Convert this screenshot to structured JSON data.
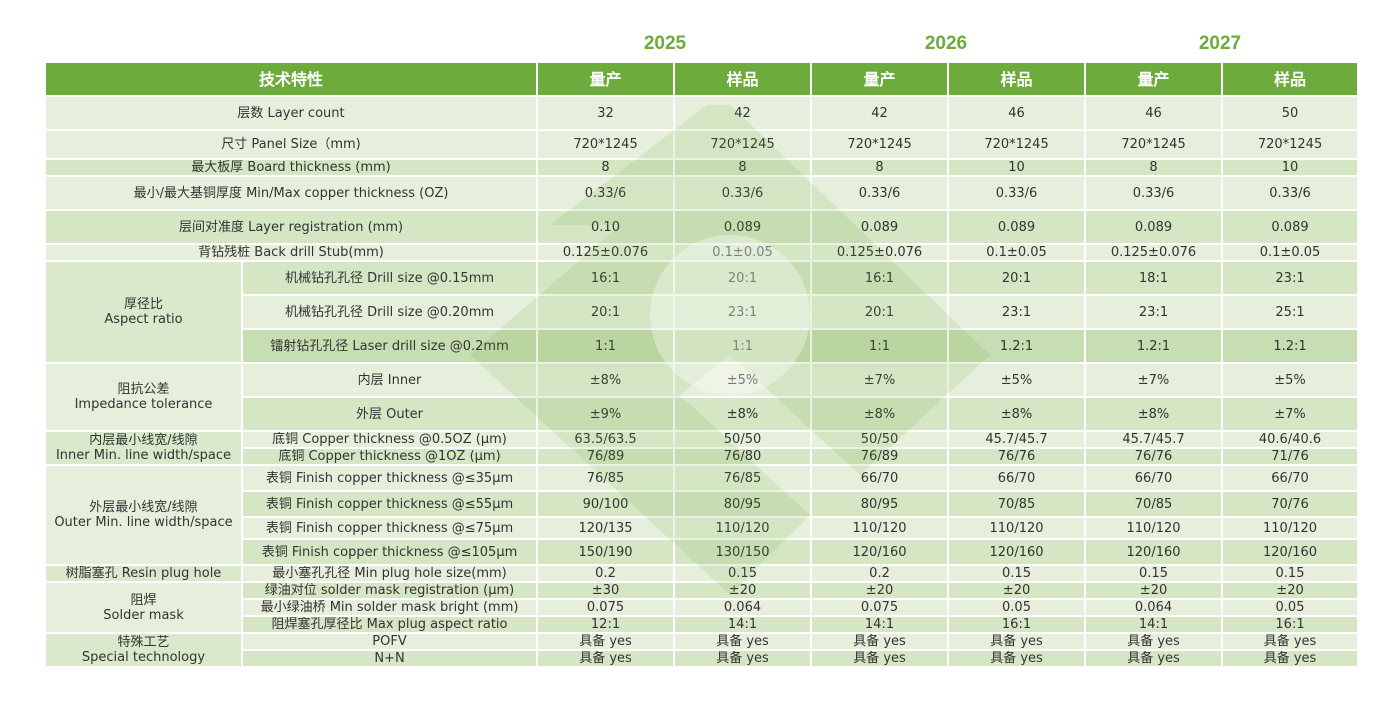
{
  "years": [
    "2025",
    "2026",
    "2027"
  ],
  "header": {
    "feature": "技术特性",
    "cols": [
      "量产",
      "样品",
      "量产",
      "样品",
      "量产",
      "样品"
    ]
  },
  "rows": [
    {
      "label": "层数 Layer count",
      "values": [
        "32",
        "42",
        "42",
        "46",
        "46",
        "50"
      ]
    },
    {
      "label": "尺寸 Panel Size（mm)",
      "values": [
        "720*1245",
        "720*1245",
        "720*1245",
        "720*1245",
        "720*1245",
        "720*1245"
      ]
    },
    {
      "label": "最大板厚 Board thickness (mm)",
      "values": [
        "8",
        "8",
        "8",
        "10",
        "8",
        "10"
      ]
    },
    {
      "label": "最小/最大基铜厚度 Min/Max copper  thickness (OZ)",
      "values": [
        "0.33/6",
        "0.33/6",
        "0.33/6",
        "0.33/6",
        "0.33/6",
        "0.33/6"
      ]
    },
    {
      "label": "层间对准度 Layer  registration (mm)",
      "values": [
        "0.10",
        "0.089",
        "0.089",
        "0.089",
        "0.089",
        "0.089"
      ]
    },
    {
      "label": "背钻残桩 Back drill Stub(mm)",
      "values": [
        "0.125±0.076",
        "0.1±0.05",
        "0.125±0.076",
        "0.1±0.05",
        "0.125±0.076",
        "0.1±0.05"
      ]
    }
  ],
  "groups": [
    {
      "label_cn": "厚径比",
      "label_en": "Aspect ratio",
      "rows": [
        {
          "label": "机械钻孔孔径 Drill size @0.15mm",
          "values": [
            "16:1",
            "20:1",
            "16:1",
            "20:1",
            "18:1",
            "23:1"
          ]
        },
        {
          "label": "机械钻孔孔径 Drill size @0.20mm",
          "values": [
            "20:1",
            "23:1",
            "20:1",
            "23:1",
            "23:1",
            "25:1"
          ]
        },
        {
          "label": "镭射钻孔孔径 Laser drill size @0.2mm",
          "values": [
            "1:1",
            "1:1",
            "1:1",
            "1.2:1",
            "1.2:1",
            "1.2:1"
          ]
        }
      ]
    },
    {
      "label_cn": "阻抗公差",
      "label_en": "Impedance tolerance",
      "rows": [
        {
          "label": "内层 Inner",
          "values": [
            "±8%",
            "±5%",
            "±7%",
            "±5%",
            "±7%",
            "±5%"
          ]
        },
        {
          "label": "外层 Outer",
          "values": [
            "±9%",
            "±8%",
            "±8%",
            "±8%",
            "±8%",
            "±7%"
          ]
        }
      ]
    },
    {
      "label_cn": "内层最小线宽/线隙",
      "label_en": "Inner Min. line width/space",
      "rows": [
        {
          "label": "底铜 Copper thickness @0.5OZ (μm)",
          "values": [
            "63.5/63.5",
            "50/50",
            "50/50",
            "45.7/45.7",
            "45.7/45.7",
            "40.6/40.6"
          ]
        },
        {
          "label": "底铜 Copper thickness @1OZ (μm)",
          "values": [
            "76/89",
            "76/80",
            "76/89",
            "76/76",
            "76/76",
            "71/76"
          ]
        }
      ]
    },
    {
      "label_cn": "外层最小线宽/线隙",
      "label_en": "Outer Min. line width/space",
      "rows": [
        {
          "label": "表铜 Finish copper thickness @≤35μm",
          "values": [
            "76/85",
            "76/85",
            "66/70",
            "66/70",
            "66/70",
            "66/70"
          ]
        },
        {
          "label": "表铜 Finish copper thickness @≤55μm",
          "values": [
            "90/100",
            "80/95",
            "80/95",
            "70/85",
            "70/85",
            "70/76"
          ]
        },
        {
          "label": "表铜 Finish copper thickness @≤75μm",
          "values": [
            "120/135",
            "110/120",
            "110/120",
            "110/120",
            "110/120",
            "110/120"
          ]
        },
        {
          "label": "表铜 Finish copper thickness @≤105μm",
          "values": [
            "150/190",
            "130/150",
            "120/160",
            "120/160",
            "120/160",
            "120/160"
          ]
        }
      ]
    },
    {
      "label_cn": "树脂塞孔 Resin plug hole",
      "label_en": "",
      "rows": [
        {
          "label": "最小塞孔孔径 Min plug hole size(mm)",
          "values": [
            "0.2",
            "0.15",
            "0.2",
            "0.15",
            "0.15",
            "0.15"
          ]
        }
      ]
    },
    {
      "label_cn": "阻焊",
      "label_en": "Solder mask",
      "rows": [
        {
          "label": "绿油对位 solder mask registration (μm)",
          "values": [
            "±30",
            "±20",
            "±20",
            "±20",
            "±20",
            "±20"
          ]
        },
        {
          "label": "最小绿油桥 Min solder mask bright (mm)",
          "values": [
            "0.075",
            "0.064",
            "0.075",
            "0.05",
            "0.064",
            "0.05"
          ]
        },
        {
          "label": "阻焊塞孔厚径比 Max plug aspect ratio",
          "values": [
            "12:1",
            "14:1",
            "14:1",
            "16:1",
            "14:1",
            "16:1"
          ]
        }
      ]
    },
    {
      "label_cn": "特殊工艺",
      "label_en": "Special technology",
      "rows": [
        {
          "label": "POFV",
          "values": [
            "具备 yes",
            "具备 yes",
            "具备 yes",
            "具备 yes",
            "具备 yes",
            "具备 yes"
          ]
        },
        {
          "label": "N+N",
          "values": [
            "具备 yes",
            "具备 yes",
            "具备 yes",
            "具备 yes",
            "具备 yes",
            "具备 yes"
          ]
        }
      ]
    }
  ],
  "colors": {
    "accent": "#6cab3c",
    "row_light": "#e6efdb",
    "row_mid": "#d5e6c5",
    "row_dark": "#c7ddb2"
  }
}
